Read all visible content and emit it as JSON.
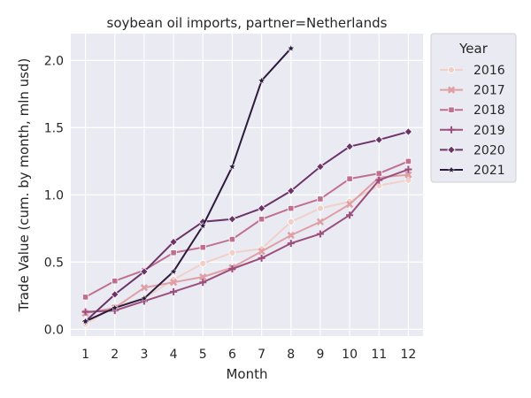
{
  "chart_data": {
    "type": "line",
    "title": "soybean oil imports, partner=Netherlands",
    "xlabel": "Month",
    "ylabel": "Trade Value (cum. by month, mln usd)",
    "x": [
      1,
      2,
      3,
      4,
      5,
      6,
      7,
      8,
      9,
      10,
      11,
      12
    ],
    "xlim": [
      0.5,
      12.5
    ],
    "ylim": [
      -0.05,
      2.2
    ],
    "yticks": [
      0.0,
      0.5,
      1.0,
      1.5,
      2.0
    ],
    "ytick_labels": [
      "0.0",
      "0.5",
      "1.0",
      "1.5",
      "2.0"
    ],
    "grid": true,
    "legend_title": "Year",
    "legend_placement": "outside-right-top",
    "colors": {
      "background": "#eaeaf2",
      "grid": "#ffffff"
    },
    "series": [
      {
        "name": "2016",
        "color": "#f0d0c8",
        "marker": "circle",
        "values": [
          0.04,
          0.17,
          0.23,
          0.37,
          0.49,
          0.57,
          0.6,
          0.8,
          0.9,
          0.95,
          1.07,
          1.11
        ]
      },
      {
        "name": "2017",
        "color": "#df9fa5",
        "marker": "x",
        "values": [
          0.12,
          0.16,
          0.31,
          0.35,
          0.39,
          0.46,
          0.58,
          0.7,
          0.8,
          0.93,
          1.13,
          1.15
        ]
      },
      {
        "name": "2018",
        "color": "#c0708f",
        "marker": "square",
        "values": [
          0.24,
          0.36,
          0.44,
          0.57,
          0.61,
          0.67,
          0.82,
          0.9,
          0.97,
          1.12,
          1.16,
          1.25
        ]
      },
      {
        "name": "2019",
        "color": "#9c4f7e",
        "marker": "plus",
        "values": [
          0.13,
          0.14,
          0.21,
          0.28,
          0.35,
          0.45,
          0.53,
          0.64,
          0.71,
          0.85,
          1.11,
          1.19
        ]
      },
      {
        "name": "2020",
        "color": "#6a3468",
        "marker": "diamond",
        "values": [
          0.06,
          0.26,
          0.43,
          0.65,
          0.8,
          0.82,
          0.9,
          1.03,
          1.21,
          1.36,
          1.41,
          1.47
        ]
      },
      {
        "name": "2021",
        "color": "#2d1a3c",
        "marker": "star",
        "values": [
          0.06,
          0.16,
          0.23,
          0.43,
          0.77,
          1.21,
          1.85,
          2.09,
          null,
          null,
          null,
          null
        ]
      }
    ]
  }
}
